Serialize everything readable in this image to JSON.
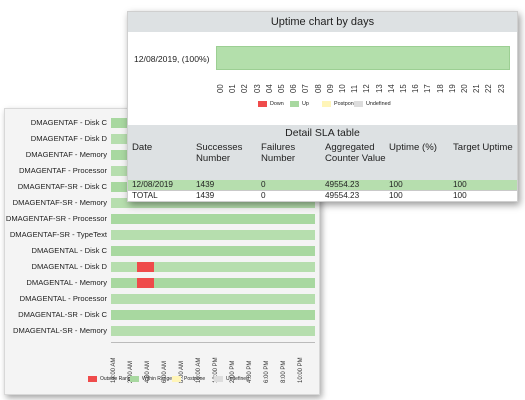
{
  "uptime_chart": {
    "title": "Uptime chart by days",
    "day_label": "12/08/2019, (100%)",
    "uptime_percent": 100,
    "hours": [
      "00",
      "01",
      "02",
      "03",
      "04",
      "05",
      "06",
      "07",
      "08",
      "09",
      "10",
      "11",
      "12",
      "13",
      "14",
      "15",
      "16",
      "17",
      "18",
      "19",
      "20",
      "21",
      "22",
      "23"
    ],
    "legend": [
      {
        "label": "Down",
        "color": "#ef4b4b"
      },
      {
        "label": "Up",
        "color": "#a8d8a0"
      },
      {
        "label": "Postpone",
        "color": "#fff5b8"
      },
      {
        "label": "Undefined",
        "color": "#dddddd"
      }
    ]
  },
  "sla_table": {
    "title": "Detail SLA table",
    "columns": [
      "Date",
      "Successes Number",
      "Failures Number",
      "Aggregated Counter Value",
      "Uptime (%)",
      "Target Uptime"
    ],
    "rows": [
      [
        "12/08/2019",
        "1439",
        "0",
        "49554.23",
        "100",
        "100"
      ],
      [
        "TOTAL",
        "1439",
        "0",
        "49554.23",
        "100",
        "100"
      ]
    ]
  },
  "service_chart": {
    "services": [
      {
        "name": "DMAGENTAF - Disk C",
        "outages": []
      },
      {
        "name": "DMAGENTAF - Disk D",
        "outages": []
      },
      {
        "name": "DMAGENTAF - Memory",
        "outages": []
      },
      {
        "name": "DMAGENTAF - Processor",
        "outages": []
      },
      {
        "name": "DMAGENTAF-SR - Disk C",
        "outages": []
      },
      {
        "name": "DMAGENTAF-SR - Memory",
        "outages": []
      },
      {
        "name": "DMAGENTAF-SR - Processor",
        "outages": []
      },
      {
        "name": "DMAGENTAF-SR - TypeText",
        "outages": []
      },
      {
        "name": "DMAGENTAL - Disk C",
        "outages": []
      },
      {
        "name": "DMAGENTAL - Disk D",
        "outages": [
          [
            3,
            5
          ]
        ]
      },
      {
        "name": "DMAGENTAL - Memory",
        "outages": [
          [
            3,
            5
          ]
        ]
      },
      {
        "name": "DMAGENTAL - Processor",
        "outages": []
      },
      {
        "name": "DMAGENTAL-SR - Disk C",
        "outages": []
      },
      {
        "name": "DMAGENTAL-SR - Memory",
        "outages": []
      }
    ],
    "time_labels": [
      "12:00 AM",
      "2:00 AM",
      "4:00 AM",
      "6:00 AM",
      "8:00 AM",
      "10:00 AM",
      "12:00 PM",
      "2:00 PM",
      "4:00 PM",
      "6:00 PM",
      "8:00 PM",
      "10:00 PM"
    ],
    "legend": [
      {
        "label": "Outside Range",
        "color": "#ef4b4b"
      },
      {
        "label": "Within Range",
        "color": "#a8d8a0"
      },
      {
        "label": "Postpone",
        "color": "#fff5b8"
      },
      {
        "label": "Undefined",
        "color": "#dddddd"
      }
    ]
  }
}
